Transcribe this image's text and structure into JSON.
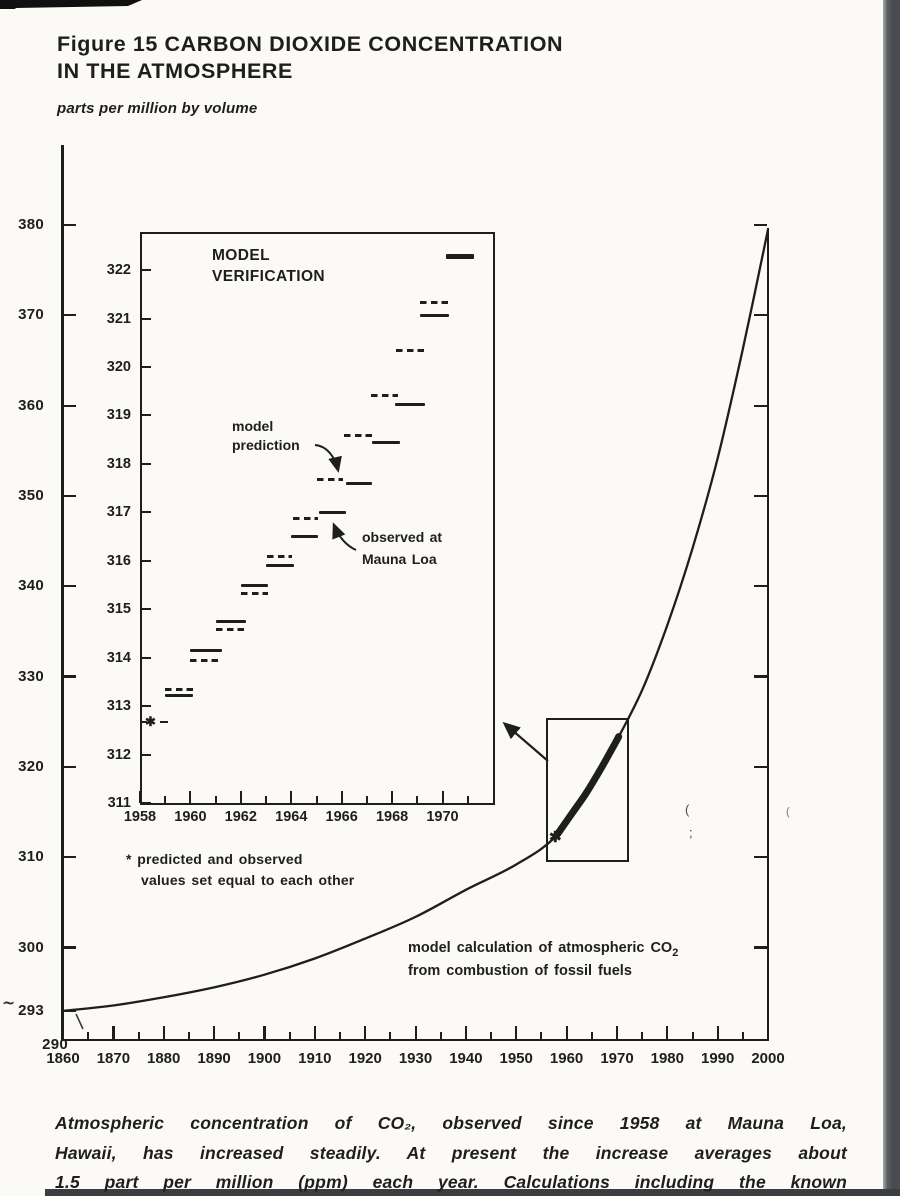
{
  "page": {
    "title_line1": "Figure 15 CARBON DIOXIDE CONCENTRATION",
    "title_line2": "IN THE ATMOSPHERE",
    "units_label": "parts per million by volume",
    "caption_lines": [
      "Atmospheric concentration of CO₂, observed since 1958 at Mauna Loa,",
      "Hawaii, has increased steadily. At present the increase averages about",
      "1.5 part per million (ppm) each year. Calculations including the known"
    ]
  },
  "symbols": {
    "asterisk": "✱",
    "squiggle": "∼",
    "stray_paren": "(",
    "stray_semicolon": ";",
    "stray_paren2": "("
  },
  "colors": {
    "ink": "#1e1e1c",
    "paper": "#fbfaf7",
    "scan_bar": "#4a4e52"
  },
  "chart_data": [
    {
      "type": "line",
      "title": "Figure 15 CARBON DIOXIDE CONCENTRATION IN THE ATMOSPHERE",
      "ylabel": "parts per million by volume",
      "xlim": [
        1860,
        2000
      ],
      "ylim": [
        290,
        389
      ],
      "grid": false,
      "x_ticks": [
        1860,
        1870,
        1880,
        1890,
        1900,
        1910,
        1920,
        1930,
        1940,
        1950,
        1960,
        1970,
        1980,
        1990,
        2000
      ],
      "x_minor_ticks": [
        1865,
        1875,
        1885,
        1895,
        1905,
        1915,
        1925,
        1935,
        1945,
        1955,
        1965,
        1975,
        1985,
        1995
      ],
      "y_ticks": [
        380,
        370,
        360,
        350,
        340,
        330,
        320,
        310,
        300,
        293,
        290
      ],
      "curve": {
        "name": "model calculation of atmospheric CO2 from combustion of fossil fuels",
        "points": [
          [
            1860,
            293
          ],
          [
            1870,
            293.6
          ],
          [
            1880,
            294.5
          ],
          [
            1890,
            295.6
          ],
          [
            1900,
            297.0
          ],
          [
            1910,
            298.8
          ],
          [
            1920,
            301.0
          ],
          [
            1930,
            303.4
          ],
          [
            1940,
            306.4
          ],
          [
            1950,
            309.2
          ],
          [
            1958,
            312.4
          ],
          [
            1965,
            318.0
          ],
          [
            1970,
            323.0
          ],
          [
            1975,
            328.5
          ],
          [
            1980,
            335.7
          ],
          [
            1985,
            344.2
          ],
          [
            1990,
            354.2
          ],
          [
            1995,
            366.3
          ],
          [
            2000,
            379.5
          ]
        ]
      },
      "observed_overlay_years": [
        1958,
        1970.3
      ],
      "asterisk_point": [
        1958,
        312.4
      ],
      "zoom_box_region": {
        "x0": 1955.8,
        "x1": 1971.9,
        "v0": 311.1,
        "v1": 326.6
      },
      "annotation_line1": "model calculation of atmospheric CO",
      "annotation_sub": "2",
      "annotation_line2": "from combustion of fossil fuels"
    },
    {
      "type": "line",
      "title_line1": "MODEL",
      "title_line2": "VERIFICATION",
      "xlim": [
        1958,
        1972
      ],
      "ylim": [
        311,
        322.8
      ],
      "grid": false,
      "x_ticks": [
        1958,
        1959,
        1960,
        1961,
        1962,
        1963,
        1964,
        1965,
        1966,
        1967,
        1968,
        1969,
        1970,
        1971
      ],
      "x_tick_labels": [
        1958,
        1960,
        1962,
        1964,
        1966,
        1968,
        1970
      ],
      "y_ticks": [
        311,
        312,
        313,
        314,
        315,
        316,
        317,
        318,
        319,
        320,
        321,
        322
      ],
      "legend": {
        "dashed": "model prediction",
        "solid": "observed at Mauna Loa"
      },
      "series": [
        {
          "name": "model prediction",
          "style": "dashed",
          "x": [
            1959,
            1960,
            1961,
            1962,
            1963,
            1964,
            1965,
            1966,
            1967,
            1968,
            1969,
            1970
          ],
          "values": [
            313.35,
            313.95,
            314.6,
            315.3,
            316.1,
            316.9,
            317.7,
            318.6,
            319.4,
            320.35,
            321.35,
            322.3
          ]
        },
        {
          "name": "observed at Mauna Loa",
          "style": "solid",
          "x": [
            1959,
            1960,
            1961,
            1962,
            1963,
            1964,
            1965,
            1966,
            1967,
            1968,
            1969,
            1970
          ],
          "values": [
            313.25,
            314.15,
            314.75,
            315.5,
            315.9,
            316.5,
            317.0,
            317.6,
            318.45,
            319.25,
            321.05,
            322.3
          ]
        }
      ],
      "segments": [
        [
          1959.0,
          1960.1,
          313.35,
          "m"
        ],
        [
          1959.0,
          1960.1,
          313.22,
          "o"
        ],
        [
          1960.0,
          1961.25,
          313.95,
          "m"
        ],
        [
          1960.0,
          1961.25,
          314.15,
          "o"
        ],
        [
          1961.0,
          1962.2,
          314.58,
          "m"
        ],
        [
          1961.0,
          1962.2,
          314.75,
          "o"
        ],
        [
          1962.0,
          1963.1,
          315.32,
          "m"
        ],
        [
          1962.0,
          1963.1,
          315.5,
          "o"
        ],
        [
          1963.05,
          1964.05,
          316.08,
          "m"
        ],
        [
          1963.0,
          1964.1,
          315.9,
          "o"
        ],
        [
          1964.05,
          1965.05,
          316.88,
          "m"
        ],
        [
          1964.0,
          1965.05,
          316.5,
          "o"
        ],
        [
          1965.0,
          1966.05,
          317.68,
          "m"
        ],
        [
          1965.1,
          1966.15,
          317.0,
          "o"
        ],
        [
          1966.1,
          1967.2,
          318.58,
          "m"
        ],
        [
          1966.15,
          1967.2,
          317.6,
          "o"
        ],
        [
          1967.15,
          1968.25,
          319.42,
          "m"
        ],
        [
          1967.2,
          1968.3,
          318.45,
          "o"
        ],
        [
          1968.15,
          1969.25,
          320.35,
          "m"
        ],
        [
          1968.1,
          1969.3,
          319.23,
          "o"
        ],
        [
          1969.1,
          1970.25,
          321.33,
          "m"
        ],
        [
          1969.1,
          1970.25,
          321.06,
          "o"
        ],
        [
          1970.15,
          1971.25,
          322.28,
          "b"
        ]
      ],
      "equal_point": {
        "year": 1958.5,
        "value": 312.65
      },
      "footnote_line1": "* predicted and observed",
      "footnote_line2": "values set equal to each other",
      "label_model_line1": "model",
      "label_model_line2": "prediction",
      "label_observed_line1": "observed at",
      "label_observed_line2": "Mauna Loa"
    }
  ]
}
